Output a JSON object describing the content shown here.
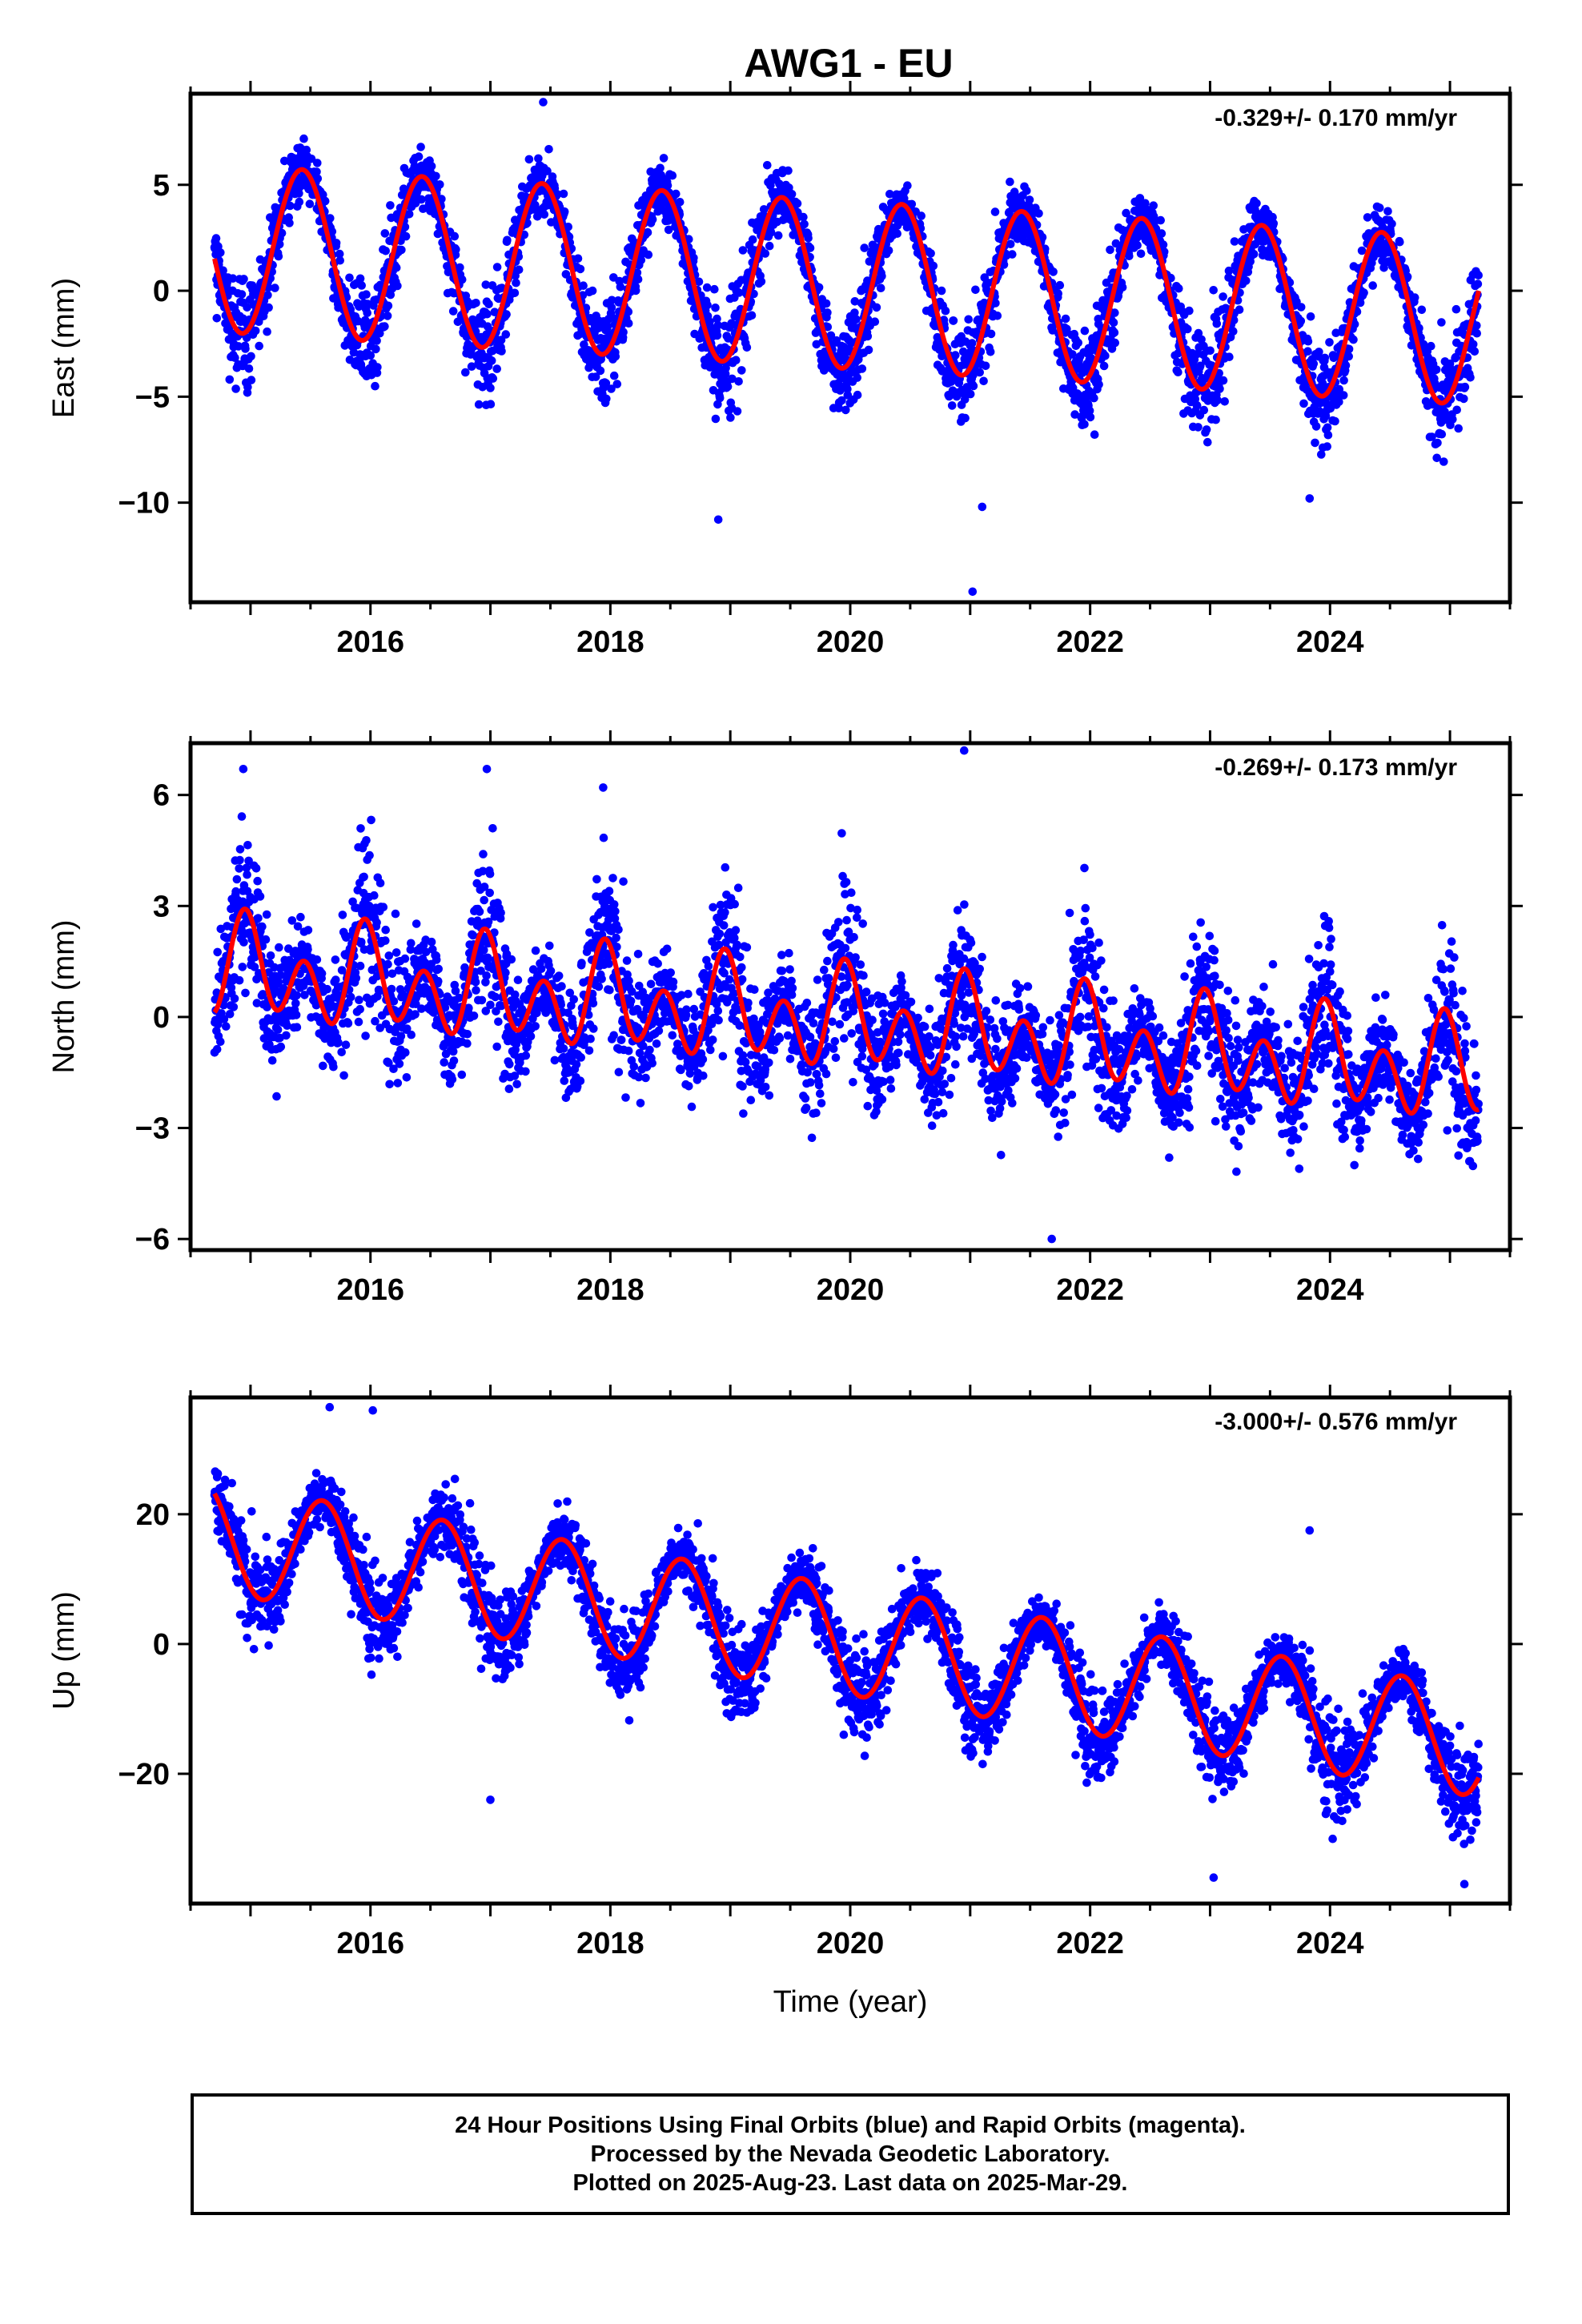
{
  "title": "AWG1 - EU",
  "colors": {
    "points": "#0000ff",
    "fit": "#ff0000",
    "axes": "#000000"
  },
  "xlabel": "Time (year)",
  "xticks": [
    2016,
    2018,
    2020,
    2022,
    2024
  ],
  "xlim": [
    2014.5,
    2025.5
  ],
  "footer": {
    "line1": "24 Hour Positions Using Final Orbits (blue) and Rapid Orbits (magenta).",
    "line2": "Processed by the Nevada Geodetic Laboratory.",
    "line3": "Plotted on 2025-Aug-23. Last data on 2025-Mar-29."
  },
  "chart_data": [
    {
      "type": "scatter",
      "ylabel": "East (mm)",
      "rate": "-0.329+/- 0.170 mm/yr",
      "ylim": [
        -14.7,
        9.3
      ],
      "yticks": [
        5,
        0,
        -5,
        -10
      ],
      "ytick_labels": [
        "5",
        "0",
        "−5",
        "−10"
      ],
      "x_range": [
        2014.7,
        2025.24
      ],
      "fit": {
        "offset": 0.3,
        "trend": -0.329,
        "annual_amp": 3.95,
        "annual_phase": 2015.43,
        "semi_amp": 0.0,
        "semi_phase": 2015.0,
        "ref": 2019.9
      },
      "scatter": 1.3,
      "outliers": [
        [
          2021.02,
          -14.2
        ],
        [
          2018.9,
          -10.8
        ],
        [
          2021.1,
          -10.2
        ],
        [
          2023.83,
          -9.8
        ],
        [
          2017.44,
          8.9
        ]
      ],
      "series": [
        {
          "name": "Final Orbits",
          "kind": "points"
        },
        {
          "name": "Fit",
          "kind": "line"
        }
      ]
    },
    {
      "type": "scatter",
      "ylabel": "North (mm)",
      "rate": "-0.269+/- 0.173 mm/yr",
      "ylim": [
        -6.3,
        7.4
      ],
      "yticks": [
        6,
        3,
        0,
        -3,
        -6
      ],
      "ytick_labels": [
        "6",
        "3",
        "0",
        "−3",
        "−6"
      ],
      "x_range": [
        2014.7,
        2025.24
      ],
      "fit": {
        "offset": -0.1,
        "trend": -0.269,
        "annual_amp": 0.65,
        "annual_phase": 2015.98,
        "semi_amp": 1.05,
        "semi_phase": 2014.95,
        "ref": 2019.9
      },
      "scatter": 1.15,
      "outliers": [
        [
          2020.95,
          7.2
        ],
        [
          2021.68,
          -6.0
        ],
        [
          2014.94,
          6.7
        ],
        [
          2016.97,
          6.7
        ],
        [
          2017.94,
          6.2
        ]
      ],
      "series": [
        {
          "name": "Final Orbits",
          "kind": "points"
        },
        {
          "name": "Fit",
          "kind": "line"
        }
      ]
    },
    {
      "type": "scatter",
      "ylabel": "Up (mm)",
      "rate": "-3.000+/- 0.576 mm/yr",
      "ylim": [
        -40,
        38
      ],
      "yticks": [
        20,
        0,
        -20
      ],
      "ytick_labels": [
        "20",
        "0",
        "−20"
      ],
      "x_range": [
        2014.7,
        2025.24
      ],
      "fit": {
        "offset": 0.8,
        "trend": -3.0,
        "annual_amp": 8.4,
        "annual_phase": 2015.6,
        "semi_amp": 0.0,
        "semi_phase": 2015.0,
        "ref": 2019.9
      },
      "scatter": 4.0,
      "outliers": [
        [
          2016.02,
          36
        ],
        [
          2015.66,
          36.5
        ],
        [
          2017.0,
          -24
        ],
        [
          2023.03,
          -36
        ],
        [
          2025.12,
          -37
        ],
        [
          2023.83,
          17.5
        ]
      ],
      "series": [
        {
          "name": "Final Orbits",
          "kind": "points"
        },
        {
          "name": "Fit",
          "kind": "line"
        }
      ]
    }
  ]
}
